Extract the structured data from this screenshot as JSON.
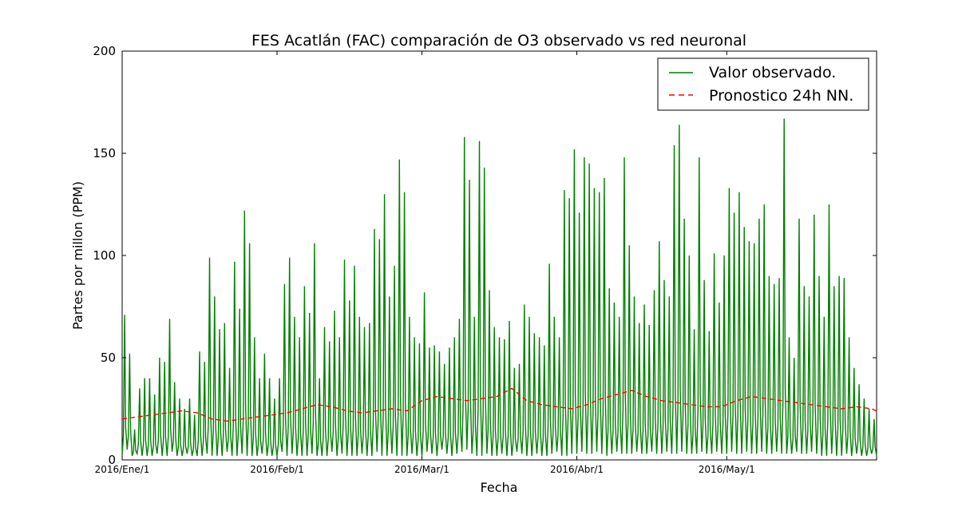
{
  "chart_data": {
    "type": "line",
    "title": "FES Acatlán (FAC) comparación de O3 observado vs red neuronal",
    "xlabel": "Fecha",
    "ylabel": "Partes por millon (PPM)",
    "ylim": [
      0,
      200
    ],
    "yticks": [
      "0",
      "50",
      "100",
      "150",
      "200"
    ],
    "xlim": [
      "2016-01-01",
      "2016-05-31"
    ],
    "xticks": [
      {
        "date": "2016-01-01",
        "label": "2016/Ene/1"
      },
      {
        "date": "2016-02-01",
        "label": "2016/Feb/1"
      },
      {
        "date": "2016-03-01",
        "label": "2016/Mar/1"
      },
      {
        "date": "2016-04-01",
        "label": "2016/Abr/1"
      },
      {
        "date": "2016-05-01",
        "label": "2016/May/1"
      }
    ],
    "grid": false,
    "legend_position": "top-right",
    "colors": {
      "observed": "#008000",
      "forecast": "#ff0000"
    },
    "series": [
      {
        "name": "Valor observado.",
        "style": "solid",
        "color": "#008000",
        "x": [
          "2016-01-01",
          "2016-01-02",
          "2016-01-03",
          "2016-01-04",
          "2016-01-05",
          "2016-01-06",
          "2016-01-07",
          "2016-01-08",
          "2016-01-09",
          "2016-01-10",
          "2016-01-11",
          "2016-01-12",
          "2016-01-13",
          "2016-01-14",
          "2016-01-15",
          "2016-01-16",
          "2016-01-17",
          "2016-01-18",
          "2016-01-19",
          "2016-01-20",
          "2016-01-21",
          "2016-01-22",
          "2016-01-23",
          "2016-01-24",
          "2016-01-25",
          "2016-01-26",
          "2016-01-27",
          "2016-01-28",
          "2016-01-29",
          "2016-01-30",
          "2016-01-31",
          "2016-02-01",
          "2016-02-02",
          "2016-02-03",
          "2016-02-04",
          "2016-02-05",
          "2016-02-06",
          "2016-02-07",
          "2016-02-08",
          "2016-02-09",
          "2016-02-10",
          "2016-02-11",
          "2016-02-12",
          "2016-02-13",
          "2016-02-14",
          "2016-02-15",
          "2016-02-16",
          "2016-02-17",
          "2016-02-18",
          "2016-02-19",
          "2016-02-20",
          "2016-02-21",
          "2016-02-22",
          "2016-02-23",
          "2016-02-24",
          "2016-02-25",
          "2016-02-26",
          "2016-02-27",
          "2016-02-28",
          "2016-02-29",
          "2016-03-01",
          "2016-03-02",
          "2016-03-03",
          "2016-03-04",
          "2016-03-05",
          "2016-03-06",
          "2016-03-07",
          "2016-03-08",
          "2016-03-09",
          "2016-03-10",
          "2016-03-11",
          "2016-03-12",
          "2016-03-13",
          "2016-03-14",
          "2016-03-15",
          "2016-03-16",
          "2016-03-17",
          "2016-03-18",
          "2016-03-19",
          "2016-03-20",
          "2016-03-21",
          "2016-03-22",
          "2016-03-23",
          "2016-03-24",
          "2016-03-25",
          "2016-03-26",
          "2016-03-27",
          "2016-03-28",
          "2016-03-29",
          "2016-03-30",
          "2016-03-31",
          "2016-04-01",
          "2016-04-02",
          "2016-04-03",
          "2016-04-04",
          "2016-04-05",
          "2016-04-06",
          "2016-04-07",
          "2016-04-08",
          "2016-04-09",
          "2016-04-10",
          "2016-04-11",
          "2016-04-12",
          "2016-04-13",
          "2016-04-14",
          "2016-04-15",
          "2016-04-16",
          "2016-04-17",
          "2016-04-18",
          "2016-04-19",
          "2016-04-20",
          "2016-04-21",
          "2016-04-22",
          "2016-04-23",
          "2016-04-24",
          "2016-04-25",
          "2016-04-26",
          "2016-04-27",
          "2016-04-28",
          "2016-04-29",
          "2016-04-30",
          "2016-05-01",
          "2016-05-02",
          "2016-05-03",
          "2016-05-04",
          "2016-05-05",
          "2016-05-06",
          "2016-05-07",
          "2016-05-08",
          "2016-05-09",
          "2016-05-10",
          "2016-05-11",
          "2016-05-12",
          "2016-05-13",
          "2016-05-14",
          "2016-05-15",
          "2016-05-16",
          "2016-05-17",
          "2016-05-18",
          "2016-05-19",
          "2016-05-20",
          "2016-05-21",
          "2016-05-22",
          "2016-05-23",
          "2016-05-24",
          "2016-05-25",
          "2016-05-26",
          "2016-05-27",
          "2016-05-28",
          "2016-05-29",
          "2016-05-30",
          "2016-05-31"
        ],
        "min": [
          2,
          5,
          2,
          3,
          2,
          2,
          2,
          3,
          2,
          2,
          4,
          2,
          2,
          3,
          2,
          2,
          2,
          3,
          2,
          2,
          2,
          4,
          2,
          2,
          3,
          2,
          2,
          2,
          3,
          2,
          2,
          2,
          4,
          2,
          3,
          2,
          2,
          2,
          3,
          2,
          2,
          2,
          4,
          2,
          3,
          2,
          2,
          2,
          3,
          2,
          2,
          4,
          2,
          2,
          3,
          2,
          2,
          2,
          3,
          2,
          2,
          4,
          3,
          2,
          5,
          3,
          2,
          3,
          4,
          5,
          3,
          2,
          2,
          3,
          2,
          2,
          3,
          2,
          2,
          4,
          3,
          2,
          2,
          3,
          2,
          2,
          3,
          4,
          2,
          2,
          3,
          3,
          4,
          3,
          3,
          4,
          3,
          2,
          3,
          4,
          3,
          3,
          3,
          4,
          3,
          3,
          4,
          3,
          3,
          4,
          3,
          3,
          4,
          3,
          3,
          3,
          4,
          3,
          3,
          4,
          3,
          3,
          4,
          3,
          3,
          4,
          3,
          3,
          4,
          3,
          3,
          4,
          3,
          3,
          3,
          4,
          3,
          3,
          4,
          3,
          2,
          2,
          3,
          2,
          2,
          3,
          2,
          3,
          2,
          2,
          3,
          2
        ],
        "peaks": [
          71,
          52,
          15,
          35,
          40,
          40,
          32,
          50,
          48,
          69,
          38,
          30,
          25,
          30,
          22,
          53,
          48,
          99,
          80,
          64,
          67,
          45,
          97,
          74,
          122,
          106,
          60,
          40,
          52,
          40,
          30,
          40,
          86,
          99,
          70,
          60,
          85,
          72,
          106,
          40,
          65,
          58,
          73,
          60,
          98,
          78,
          95,
          70,
          65,
          67,
          113,
          108,
          130,
          80,
          95,
          147,
          131,
          70,
          60,
          57,
          82,
          55,
          56,
          53,
          47,
          55,
          60,
          69,
          158,
          137,
          70,
          156,
          143,
          83,
          65,
          60,
          59,
          68,
          45,
          47,
          76,
          70,
          62,
          60,
          56,
          96,
          70,
          60,
          132,
          128,
          152,
          121,
          148,
          145,
          133,
          131,
          138,
          84,
          77,
          70,
          148,
          105,
          80,
          67,
          76,
          66,
          83,
          107,
          88,
          80,
          154,
          164,
          118,
          100,
          64,
          148,
          88,
          63,
          101,
          77,
          100,
          133,
          121,
          131,
          114,
          107,
          106,
          118,
          125,
          90,
          86,
          89,
          167,
          60,
          50,
          118,
          85,
          80,
          120,
          90,
          70,
          125,
          85,
          90,
          89,
          60,
          45,
          37,
          30,
          25,
          20,
          15
        ],
        "peak_dates": [
          "2016-01-01",
          "2016-01-02",
          "2016-01-03",
          "2016-01-04",
          "2016-01-05",
          "2016-01-06",
          "2016-01-07",
          "2016-01-08",
          "2016-01-09",
          "2016-01-10",
          "2016-01-11",
          "2016-01-12",
          "2016-01-13",
          "2016-01-14",
          "2016-01-15",
          "2016-01-16",
          "2016-01-17",
          "2016-01-18",
          "2016-01-19",
          "2016-01-20",
          "2016-01-21",
          "2016-01-22",
          "2016-01-23",
          "2016-01-24",
          "2016-01-25",
          "2016-01-26",
          "2016-01-27",
          "2016-01-28",
          "2016-01-29",
          "2016-01-30",
          "2016-01-31",
          "2016-02-01",
          "2016-02-02",
          "2016-02-03",
          "2016-02-04",
          "2016-02-05",
          "2016-02-06",
          "2016-02-07",
          "2016-02-08",
          "2016-02-09",
          "2016-02-10",
          "2016-02-11",
          "2016-02-12",
          "2016-02-13",
          "2016-02-14",
          "2016-02-15",
          "2016-02-16",
          "2016-02-17",
          "2016-02-18",
          "2016-02-19",
          "2016-02-20",
          "2016-02-21",
          "2016-02-22",
          "2016-02-23",
          "2016-02-24",
          "2016-02-25",
          "2016-02-26",
          "2016-02-27",
          "2016-02-28",
          "2016-02-29",
          "2016-03-01",
          "2016-03-02",
          "2016-03-03",
          "2016-03-04",
          "2016-03-05",
          "2016-03-06",
          "2016-03-07",
          "2016-03-08",
          "2016-03-09",
          "2016-03-10",
          "2016-03-11",
          "2016-03-12",
          "2016-03-13",
          "2016-03-14",
          "2016-03-15",
          "2016-03-16",
          "2016-03-17",
          "2016-03-18",
          "2016-03-19",
          "2016-03-20",
          "2016-03-21",
          "2016-03-22",
          "2016-03-23",
          "2016-03-24",
          "2016-03-25",
          "2016-03-26",
          "2016-03-27",
          "2016-03-28",
          "2016-03-29",
          "2016-03-30",
          "2016-03-31",
          "2016-04-01",
          "2016-04-02",
          "2016-04-03",
          "2016-04-04",
          "2016-04-05",
          "2016-04-06",
          "2016-04-07",
          "2016-04-08",
          "2016-04-09",
          "2016-04-10",
          "2016-04-11",
          "2016-04-12",
          "2016-04-13",
          "2016-04-14",
          "2016-04-15",
          "2016-04-16",
          "2016-04-17",
          "2016-04-18",
          "2016-04-19",
          "2016-04-20",
          "2016-04-21",
          "2016-04-22",
          "2016-04-23",
          "2016-04-24",
          "2016-04-25",
          "2016-04-26",
          "2016-04-27",
          "2016-04-28",
          "2016-04-29",
          "2016-04-30",
          "2016-05-01",
          "2016-05-02",
          "2016-05-03",
          "2016-05-04",
          "2016-05-05",
          "2016-05-06",
          "2016-05-07",
          "2016-05-08",
          "2016-05-09",
          "2016-05-10",
          "2016-05-11",
          "2016-05-12",
          "2016-05-13",
          "2016-05-14",
          "2016-05-15",
          "2016-05-16",
          "2016-05-17",
          "2016-05-18",
          "2016-05-19",
          "2016-05-20",
          "2016-05-21",
          "2016-05-22",
          "2016-05-23",
          "2016-05-24",
          "2016-05-25",
          "2016-05-26",
          "2016-05-27",
          "2016-05-28",
          "2016-05-29",
          "2016-05-30",
          "2016-05-31"
        ]
      },
      {
        "name": "Pronostico 24h NN.",
        "style": "dashed",
        "color": "#ff0000",
        "x": [
          "2016-01-01",
          "2016-01-04",
          "2016-01-07",
          "2016-01-10",
          "2016-01-13",
          "2016-01-16",
          "2016-01-19",
          "2016-01-22",
          "2016-01-25",
          "2016-01-28",
          "2016-01-31",
          "2016-02-03",
          "2016-02-06",
          "2016-02-09",
          "2016-02-12",
          "2016-02-15",
          "2016-02-18",
          "2016-02-21",
          "2016-02-24",
          "2016-02-27",
          "2016-03-01",
          "2016-03-04",
          "2016-03-07",
          "2016-03-10",
          "2016-03-13",
          "2016-03-16",
          "2016-03-19",
          "2016-03-22",
          "2016-03-25",
          "2016-03-28",
          "2016-03-31",
          "2016-04-03",
          "2016-04-06",
          "2016-04-09",
          "2016-04-12",
          "2016-04-15",
          "2016-04-18",
          "2016-04-21",
          "2016-04-24",
          "2016-04-27",
          "2016-04-30",
          "2016-05-03",
          "2016-05-06",
          "2016-05-09",
          "2016-05-12",
          "2016-05-15",
          "2016-05-18",
          "2016-05-21",
          "2016-05-24",
          "2016-05-27",
          "2016-05-30",
          "2016-05-31"
        ],
        "y": [
          20,
          21,
          22,
          23,
          24,
          23,
          20,
          19,
          20,
          21,
          22,
          23,
          25,
          27,
          26,
          24,
          23,
          24,
          25,
          24,
          29,
          31,
          30,
          29,
          30,
          31,
          35,
          29,
          27,
          26,
          25,
          27,
          30,
          32,
          34,
          31,
          29,
          28,
          27,
          26,
          26,
          29,
          31,
          30,
          29,
          28,
          27,
          26,
          25,
          26,
          25,
          24
        ]
      }
    ]
  }
}
